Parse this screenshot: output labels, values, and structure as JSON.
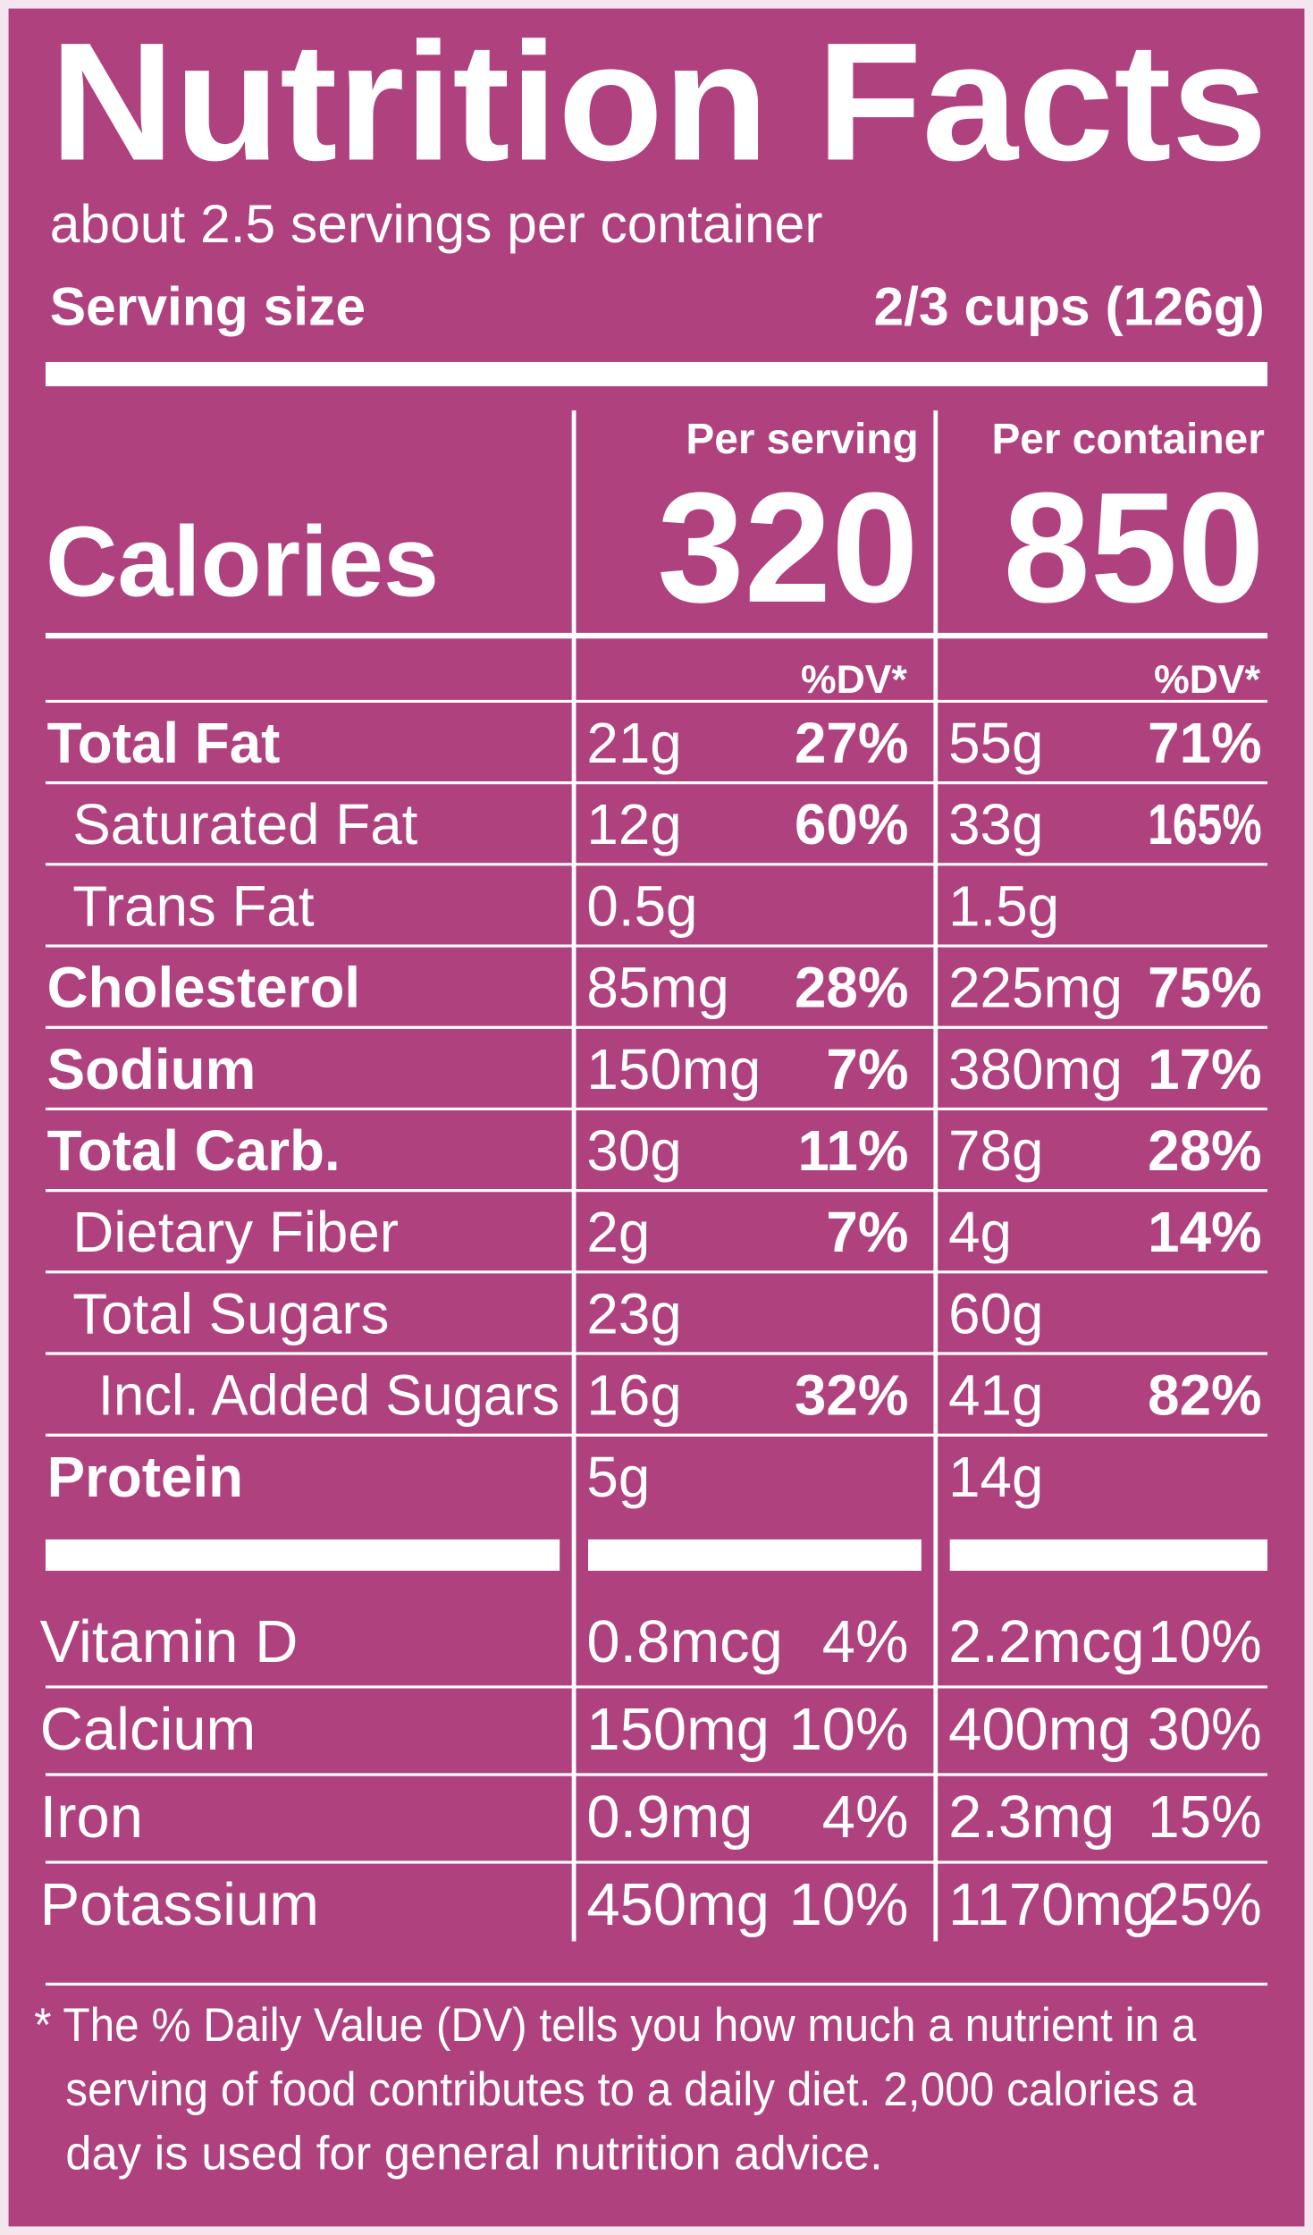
{
  "header": {
    "title": "Nutrition Facts",
    "servings": "about 2.5 servings per container",
    "serving_size_label": "Serving size",
    "serving_size": "2/3 cups (126g)"
  },
  "columns": {
    "per_serving": "Per serving",
    "per_container": "Per container"
  },
  "calories": {
    "label": "Calories",
    "per_serving": "320",
    "per_container": "850"
  },
  "dv_header": {
    "per_serving": "%DV*",
    "per_container": "%DV*"
  },
  "nutrients": [
    {
      "name": "Total Fat",
      "bold": true,
      "level": 0,
      "serving_amount": "21g",
      "serving_dv": "27%",
      "container_amount": "55g",
      "container_dv": "71%"
    },
    {
      "name": "Saturated Fat",
      "bold": false,
      "level": 1,
      "serving_amount": "12g",
      "serving_dv": "60%",
      "container_amount": "33g",
      "container_dv": "165%"
    },
    {
      "name": "Trans Fat",
      "bold": false,
      "level": 1,
      "serving_amount": "0.5g",
      "container_amount": "1.5g"
    },
    {
      "name": "Cholesterol",
      "bold": true,
      "level": 0,
      "serving_amount": "85mg",
      "serving_dv": "28%",
      "container_amount": "225mg",
      "container_dv": "75%"
    },
    {
      "name": "Sodium",
      "bold": true,
      "level": 0,
      "serving_amount": "150mg",
      "serving_dv": "7%",
      "container_amount": "380mg",
      "container_dv": "17%"
    },
    {
      "name": "Total Carb.",
      "bold": true,
      "level": 0,
      "serving_amount": "30g",
      "serving_dv": "11%",
      "container_amount": "78g",
      "container_dv": "28%"
    },
    {
      "name": "Dietary Fiber",
      "bold": false,
      "level": 1,
      "serving_amount": "2g",
      "serving_dv": "7%",
      "container_amount": "4g",
      "container_dv": "14%"
    },
    {
      "name": "Total Sugars",
      "bold": false,
      "level": 1,
      "serving_amount": "23g",
      "container_amount": "60g"
    },
    {
      "name": "Incl. Added Sugars",
      "bold": false,
      "level": 2,
      "serving_amount": "16g",
      "serving_dv": "32%",
      "container_amount": "41g",
      "container_dv": "82%"
    },
    {
      "name": "Protein",
      "bold": true,
      "level": 0,
      "serving_amount": "5g",
      "container_amount": "14g"
    }
  ],
  "vitamins": [
    {
      "name": "Vitamin D",
      "serving_amount": "0.8mcg",
      "serving_dv": "4%",
      "container_amount": "2.2mcg",
      "container_dv": "10%"
    },
    {
      "name": "Calcium",
      "serving_amount": "150mg",
      "serving_dv": "10%",
      "container_amount": "400mg",
      "container_dv": "30%"
    },
    {
      "name": "Iron",
      "serving_amount": "0.9mg",
      "serving_dv": "4%",
      "container_amount": "2.3mg",
      "container_dv": "15%"
    },
    {
      "name": "Potassium",
      "serving_amount": "450mg",
      "serving_dv": "10%",
      "container_amount": "1170mg",
      "container_dv": "25%"
    }
  ],
  "footnote": [
    "* The % Daily Value (DV) tells you how much a nutrient in a",
    "serving of food contributes to a daily diet. 2,000 calories a",
    "day is used for general nutrition advice."
  ]
}
